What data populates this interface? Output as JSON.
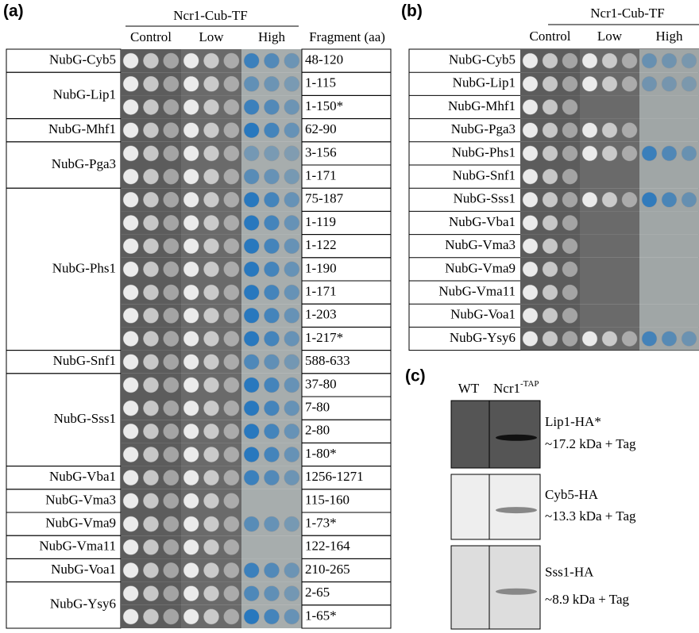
{
  "panel_a": {
    "label": "(a)",
    "construct": "Ncr1-Cub-TF",
    "conditions": [
      "Control",
      "Low",
      "High"
    ],
    "fragment_header": "Fragment (aa)",
    "groups": [
      {
        "name": "NubG-Cyb5",
        "fragments": [
          "48-120"
        ]
      },
      {
        "name": "NubG-Lip1",
        "fragments": [
          "1-115",
          "1-150*"
        ]
      },
      {
        "name": "NubG-Mhf1",
        "fragments": [
          "62-90"
        ]
      },
      {
        "name": "NubG-Pga3",
        "fragments": [
          "3-156",
          "1-171"
        ]
      },
      {
        "name": "NubG-Phs1",
        "fragments": [
          "75-187",
          "1-119",
          "1-122",
          "1-190",
          "1-171",
          "1-203",
          "1-217*"
        ]
      },
      {
        "name": "NubG-Snf1",
        "fragments": [
          "588-633"
        ]
      },
      {
        "name": "NubG-Sss1",
        "fragments": [
          "37-80",
          "7-80",
          "2-80",
          "1-80*"
        ]
      },
      {
        "name": "NubG-Vba1",
        "fragments": [
          "1256-1271"
        ]
      },
      {
        "name": "NubG-Vma3",
        "fragments": [
          "115-160"
        ]
      },
      {
        "name": "NubG-Vma9",
        "fragments": [
          "1-73*"
        ]
      },
      {
        "name": "NubG-Vma11",
        "fragments": [
          "122-164"
        ]
      },
      {
        "name": "NubG-Voa1",
        "fragments": [
          "210-265"
        ]
      },
      {
        "name": "NubG-Ysy6",
        "fragments": [
          "2-65",
          "1-65*"
        ]
      }
    ]
  },
  "panel_b": {
    "label": "(b)",
    "construct": "Ncr1-Cub-TF",
    "conditions": [
      "Control",
      "Low",
      "High"
    ],
    "rows": [
      "NubG-Cyb5",
      "NubG-Lip1",
      "NubG-Mhf1",
      "NubG-Pga3",
      "NubG-Phs1",
      "NubG-Snf1",
      "NubG-Sss1",
      "NubG-Vba1",
      "NubG-Vma3",
      "NubG-Vma9",
      "NubG-Vma11",
      "NubG-Voa1",
      "NubG-Ysy6"
    ]
  },
  "panel_c": {
    "label": "(c)",
    "lanes": [
      {
        "name": "WT"
      },
      {
        "name": "Ncr1",
        "superscript": "-TAP"
      }
    ],
    "blots": [
      {
        "protein": "Lip1-HA*",
        "size": "~17.2 kDa + Tag"
      },
      {
        "protein": "Cyb5-HA",
        "size": "~13.3 kDa + Tag"
      },
      {
        "protein": "Sss1-HA",
        "size": "~8.9 kDa + Tag"
      }
    ]
  }
}
